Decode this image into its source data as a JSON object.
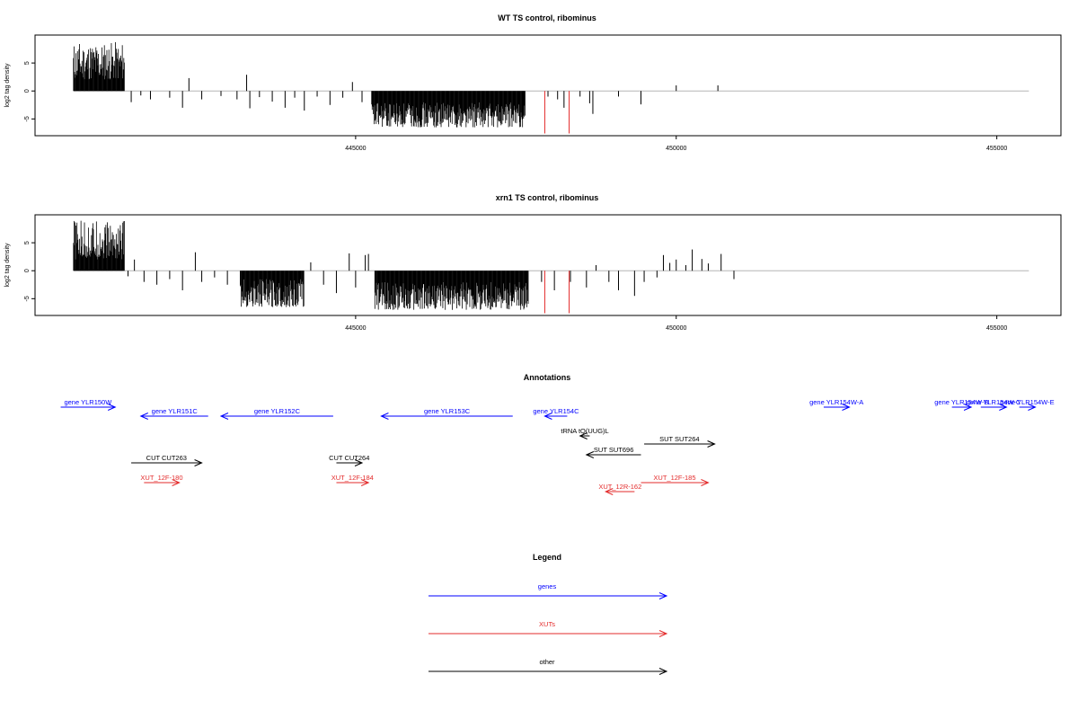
{
  "chart_data": [
    {
      "type": "bar",
      "title": "WT TS control, ribominus",
      "xlabel": "",
      "ylabel": "log2 tag density",
      "xlim": [
        440000,
        456000
      ],
      "ylim": [
        -8,
        10
      ],
      "y_ticks": [
        -5,
        0,
        5
      ],
      "x_ticks": [
        445000,
        450000,
        455000
      ],
      "grid": false,
      "series": [
        {
          "color": "#000000",
          "segments": [
            {
              "x_start": 440600,
              "x_end": 441400,
              "y_min": 2.0,
              "y_max": 8.8
            },
            {
              "x_start": 445250,
              "x_end": 447650,
              "y_min": -6.5,
              "y_max": -2.0
            }
          ],
          "points": [
            {
              "x": 441500,
              "y": -2.0
            },
            {
              "x": 441650,
              "y": -0.8
            },
            {
              "x": 441800,
              "y": -1.5
            },
            {
              "x": 442100,
              "y": -1.2
            },
            {
              "x": 442300,
              "y": -3.0
            },
            {
              "x": 442400,
              "y": 2.3
            },
            {
              "x": 442600,
              "y": -1.5
            },
            {
              "x": 442900,
              "y": -0.9
            },
            {
              "x": 443150,
              "y": -1.5
            },
            {
              "x": 443300,
              "y": 2.9
            },
            {
              "x": 443350,
              "y": -3.1
            },
            {
              "x": 443500,
              "y": -1.1
            },
            {
              "x": 443700,
              "y": -1.9
            },
            {
              "x": 443900,
              "y": -3.0
            },
            {
              "x": 444050,
              "y": -1.2
            },
            {
              "x": 444200,
              "y": -3.5
            },
            {
              "x": 444400,
              "y": -1.0
            },
            {
              "x": 444600,
              "y": -2.5
            },
            {
              "x": 444800,
              "y": -1.2
            },
            {
              "x": 444950,
              "y": 1.6
            },
            {
              "x": 445100,
              "y": -2.0
            },
            {
              "x": 448000,
              "y": -1.0
            },
            {
              "x": 448150,
              "y": -1.5
            },
            {
              "x": 448250,
              "y": -3.0
            },
            {
              "x": 448500,
              "y": -1.0
            },
            {
              "x": 448650,
              "y": -2.2
            },
            {
              "x": 448700,
              "y": -4.1
            },
            {
              "x": 449100,
              "y": -1.0
            },
            {
              "x": 449450,
              "y": -2.4
            },
            {
              "x": 450000,
              "y": 1.0
            },
            {
              "x": 450650,
              "y": 1.0
            }
          ]
        },
        {
          "color": "#e32b2b",
          "points": [
            {
              "x": 447950,
              "y": -7.6
            },
            {
              "x": 448330,
              "y": -7.6
            }
          ]
        }
      ],
      "baseline": 0
    },
    {
      "type": "bar",
      "title": "xrn1 TS control, ribominus",
      "xlabel": "",
      "ylabel": "log2 tag density",
      "xlim": [
        440000,
        456000
      ],
      "ylim": [
        -8,
        10
      ],
      "y_ticks": [
        -5,
        0,
        5
      ],
      "x_ticks": [
        445000,
        450000,
        455000
      ],
      "grid": false,
      "series": [
        {
          "color": "#000000",
          "segments": [
            {
              "x_start": 440600,
              "x_end": 441400,
              "y_min": 2.0,
              "y_max": 9.0
            },
            {
              "x_start": 443200,
              "x_end": 444200,
              "y_min": -6.5,
              "y_max": -1.5
            },
            {
              "x_start": 445300,
              "x_end": 447700,
              "y_min": -7.0,
              "y_max": -2.0
            }
          ],
          "points": [
            {
              "x": 441450,
              "y": -1.0
            },
            {
              "x": 441550,
              "y": 2.0
            },
            {
              "x": 441700,
              "y": -2.0
            },
            {
              "x": 441900,
              "y": -2.5
            },
            {
              "x": 442100,
              "y": -1.5
            },
            {
              "x": 442300,
              "y": -3.5
            },
            {
              "x": 442500,
              "y": 3.3
            },
            {
              "x": 442600,
              "y": -2.0
            },
            {
              "x": 442800,
              "y": -1.2
            },
            {
              "x": 443000,
              "y": -2.5
            },
            {
              "x": 444300,
              "y": 1.5
            },
            {
              "x": 444500,
              "y": -2.5
            },
            {
              "x": 444700,
              "y": -4.0
            },
            {
              "x": 444900,
              "y": 3.1
            },
            {
              "x": 445000,
              "y": -3.0
            },
            {
              "x": 445150,
              "y": 2.8
            },
            {
              "x": 445200,
              "y": 3.0
            },
            {
              "x": 447900,
              "y": -2.0
            },
            {
              "x": 448100,
              "y": -3.5
            },
            {
              "x": 448350,
              "y": -2.0
            },
            {
              "x": 448600,
              "y": -3.0
            },
            {
              "x": 448750,
              "y": 1.0
            },
            {
              "x": 448950,
              "y": -2.0
            },
            {
              "x": 449100,
              "y": -3.5
            },
            {
              "x": 449350,
              "y": -4.5
            },
            {
              "x": 449500,
              "y": -2.0
            },
            {
              "x": 449700,
              "y": -1.2
            },
            {
              "x": 449800,
              "y": 2.8
            },
            {
              "x": 449900,
              "y": 1.4
            },
            {
              "x": 450000,
              "y": 2.0
            },
            {
              "x": 450150,
              "y": 1.0
            },
            {
              "x": 450250,
              "y": 3.8
            },
            {
              "x": 450400,
              "y": 2.1
            },
            {
              "x": 450500,
              "y": 1.3
            },
            {
              "x": 450700,
              "y": 3.0
            },
            {
              "x": 450900,
              "y": -1.5
            }
          ]
        },
        {
          "color": "#e32b2b",
          "points": [
            {
              "x": 447950,
              "y": -7.6
            },
            {
              "x": 448330,
              "y": -7.6
            }
          ]
        }
      ],
      "baseline": 0
    }
  ],
  "annotations": {
    "title": "Annotations",
    "genes": [
      {
        "label": "gene YLR150W",
        "start": 440400,
        "end": 441250,
        "strand": "+",
        "row": 0,
        "color": "#0000ff"
      },
      {
        "label": "gene YLR151C",
        "start": 441650,
        "end": 442700,
        "strand": "-",
        "row": 1,
        "color": "#0000ff"
      },
      {
        "label": "gene YLR152C",
        "start": 442900,
        "end": 444650,
        "strand": "-",
        "row": 1,
        "color": "#0000ff"
      },
      {
        "label": "gene YLR153C",
        "start": 445400,
        "end": 447450,
        "strand": "-",
        "row": 1,
        "color": "#0000ff"
      },
      {
        "label": "gene YLR154C",
        "start": 447950,
        "end": 448300,
        "strand": "-",
        "row": 1,
        "color": "#0000ff"
      },
      {
        "label": "gene YLR154W-A",
        "start": 452300,
        "end": 452700,
        "strand": "+",
        "row": 0,
        "color": "#0000ff"
      },
      {
        "label": "gene YLR154W-B",
        "start": 454300,
        "end": 454600,
        "strand": "+",
        "row": 0,
        "color": "#0000ff"
      },
      {
        "label": "gene YLR154W-C",
        "start": 454750,
        "end": 455150,
        "strand": "+",
        "row": 0,
        "color": "#0000ff"
      },
      {
        "label": "gene YLR154W-E",
        "start": 455350,
        "end": 455600,
        "strand": "+",
        "row": 0,
        "color": "#0000ff"
      }
    ],
    "other": [
      {
        "label": "tRNA tQ(UUG)L",
        "start": 448500,
        "end": 448650,
        "strand": "-",
        "row": 2,
        "color": "#000000"
      },
      {
        "label": "SUT SUT264",
        "start": 449500,
        "end": 450600,
        "strand": "+",
        "row": 3,
        "color": "#000000"
      },
      {
        "label": "SUT SUT696",
        "start": 448600,
        "end": 449450,
        "strand": "-",
        "row": 4,
        "color": "#000000"
      },
      {
        "label": "CUT CUT263",
        "start": 441500,
        "end": 442600,
        "strand": "+",
        "row": 5,
        "color": "#000000"
      },
      {
        "label": "CUT CUT264",
        "start": 444700,
        "end": 445100,
        "strand": "+",
        "row": 5,
        "color": "#000000"
      }
    ],
    "xuts": [
      {
        "label": "XUT_12F-180",
        "start": 441700,
        "end": 442250,
        "strand": "+",
        "row": 6,
        "color": "#e32b2b"
      },
      {
        "label": "XUT_12F-184",
        "start": 444700,
        "end": 445200,
        "strand": "+",
        "row": 6,
        "color": "#e32b2b"
      },
      {
        "label": "XUT_12F-185",
        "start": 449450,
        "end": 450500,
        "strand": "+",
        "row": 6,
        "color": "#e32b2b"
      },
      {
        "label": "XUT_12R-162",
        "start": 448900,
        "end": 449350,
        "strand": "-",
        "row": 7,
        "color": "#e32b2b"
      }
    ]
  },
  "legend": {
    "title": "Legend",
    "items": [
      {
        "label": "genes",
        "color": "#0000ff"
      },
      {
        "label": "XUTs",
        "color": "#e32b2b"
      },
      {
        "label": "other",
        "color": "#000000"
      }
    ]
  }
}
